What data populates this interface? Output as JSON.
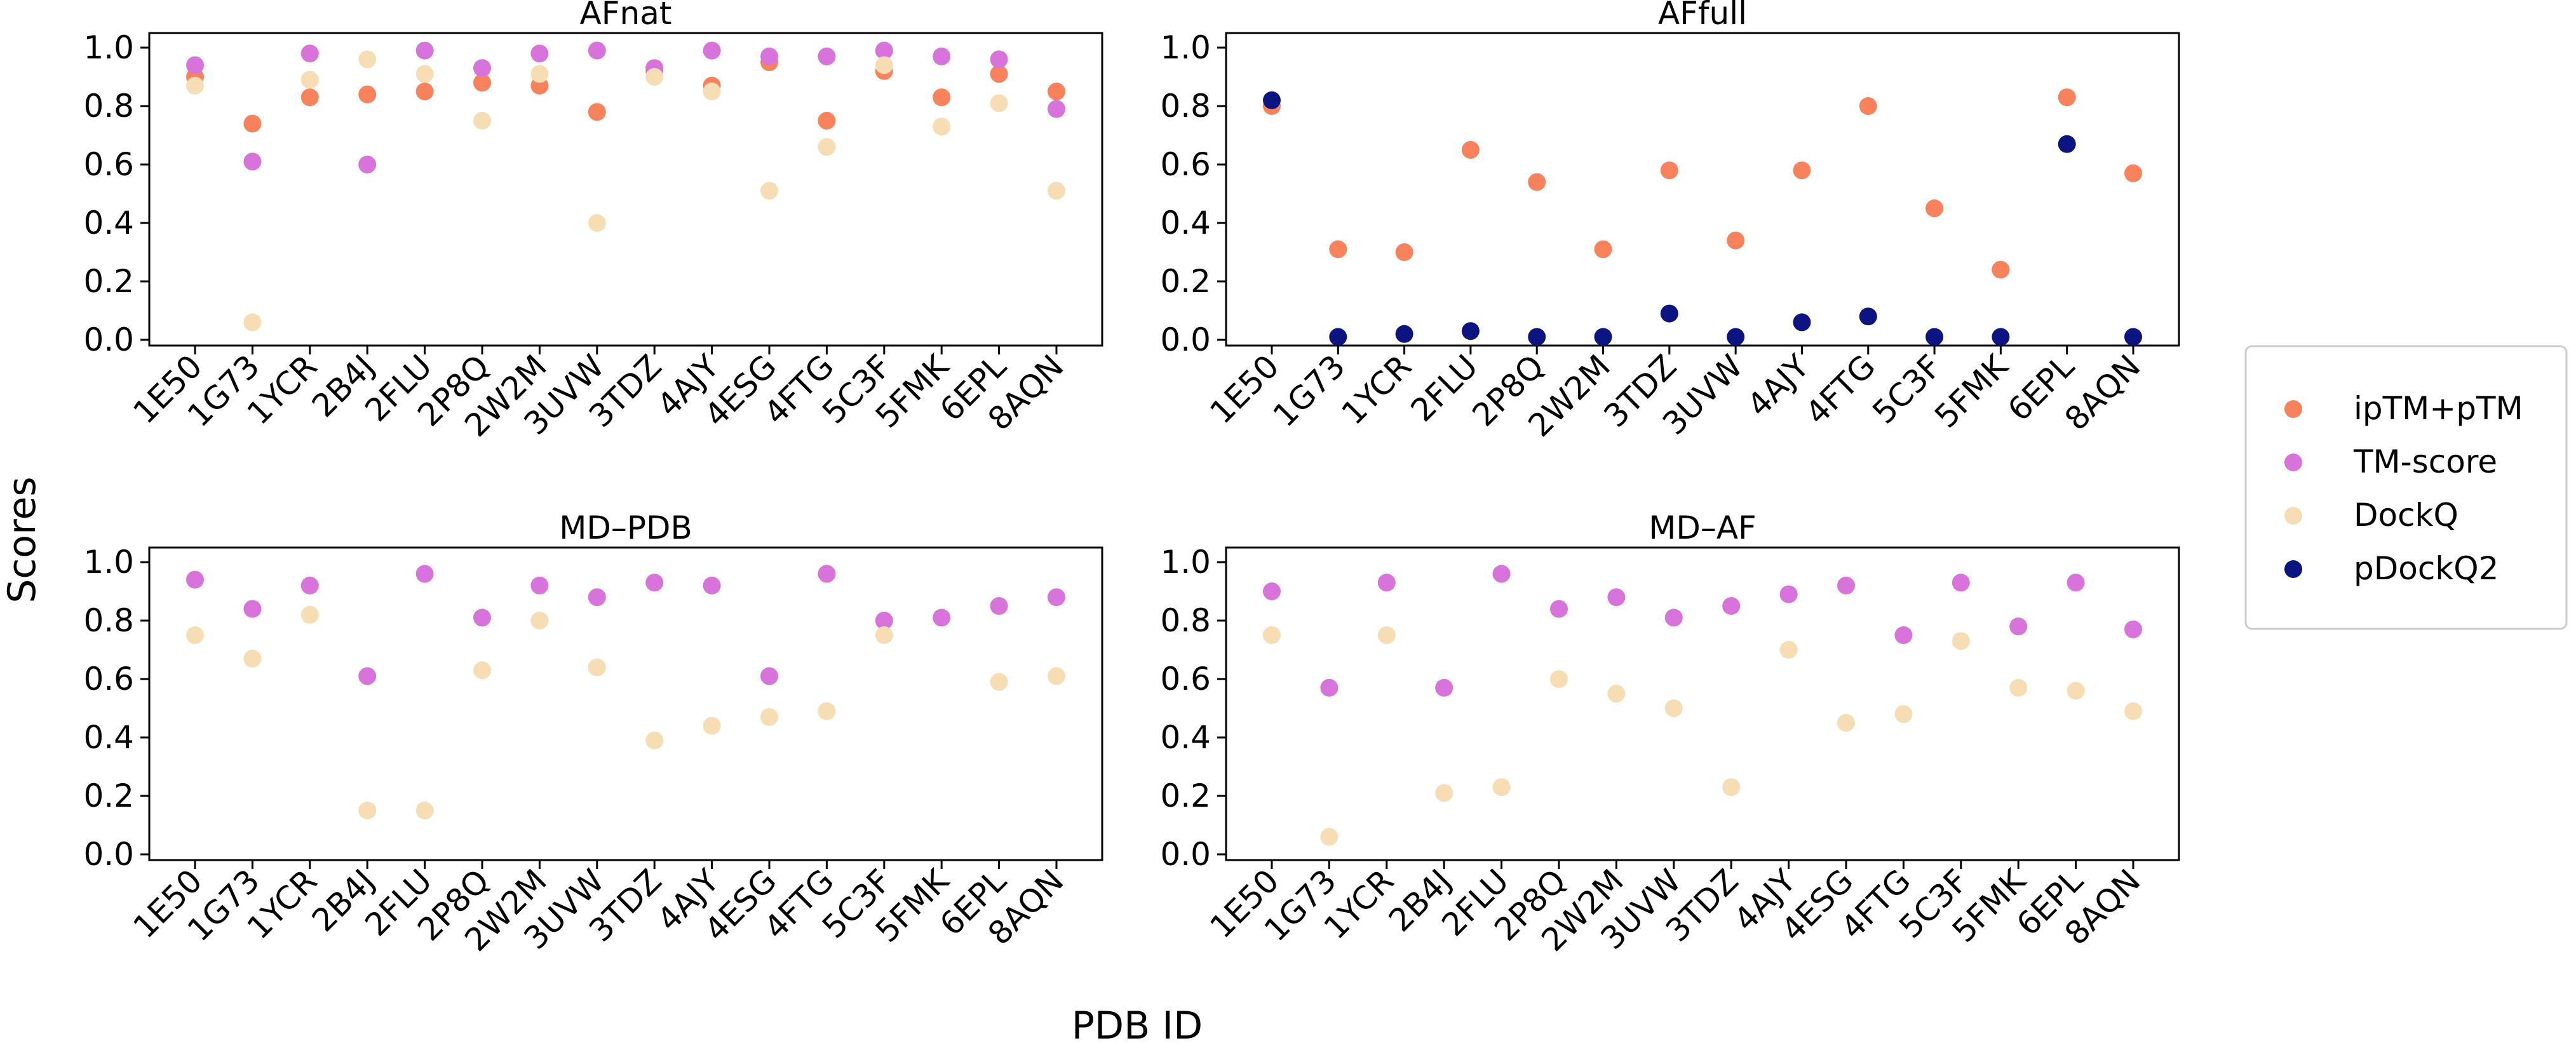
{
  "xlabel": "PDB ID",
  "ylabel": "Scores",
  "series_colors": {
    "ipTM+pTM": "#f8825c",
    "TM-score": "#d973dc",
    "DockQ": "#f6ddb4",
    "pDockQ2": "#0b1480"
  },
  "legend": {
    "position": "right",
    "entries": [
      "ipTM+pTM",
      "TM-score",
      "DockQ",
      "pDockQ2"
    ]
  },
  "chart_data": [
    {
      "type": "scatter",
      "title": "AFnat",
      "categories": [
        "1E50",
        "1G73",
        "1YCR",
        "2B4J",
        "2FLU",
        "2P8Q",
        "2W2M",
        "3UVW",
        "3TDZ",
        "4AJY",
        "4ESG",
        "4FTG",
        "5C3F",
        "5FMK",
        "6EPL",
        "8AQN"
      ],
      "ylim": [
        0,
        1.0
      ],
      "yticks": [
        "0.0",
        "0.2",
        "0.4",
        "0.6",
        "0.8",
        "1.0"
      ],
      "series": [
        {
          "name": "ipTM+pTM",
          "values": [
            0.9,
            0.74,
            0.83,
            0.84,
            0.85,
            0.88,
            0.87,
            0.78,
            0.92,
            0.87,
            0.95,
            0.75,
            0.92,
            0.83,
            0.91,
            0.85
          ]
        },
        {
          "name": "TM-score",
          "values": [
            0.94,
            0.61,
            0.98,
            0.6,
            0.99,
            0.93,
            0.98,
            0.99,
            0.93,
            0.99,
            0.97,
            0.97,
            0.99,
            0.97,
            0.96,
            0.79
          ]
        },
        {
          "name": "DockQ",
          "values": [
            0.87,
            0.06,
            0.89,
            0.96,
            0.91,
            0.75,
            0.91,
            0.4,
            0.9,
            0.85,
            0.51,
            0.66,
            0.94,
            0.73,
            0.81,
            0.51
          ]
        }
      ]
    },
    {
      "type": "scatter",
      "title": "AFfull",
      "categories": [
        "1E50",
        "1G73",
        "1YCR",
        "2FLU",
        "2P8Q",
        "2W2M",
        "3TDZ",
        "3UVW",
        "4AJY",
        "4FTG",
        "5C3F",
        "5FMK",
        "6EPL",
        "8AQN"
      ],
      "ylim": [
        0,
        1.0
      ],
      "yticks": [
        "0.0",
        "0.2",
        "0.4",
        "0.6",
        "0.8",
        "1.0"
      ],
      "series": [
        {
          "name": "ipTM+pTM",
          "values": [
            0.8,
            0.31,
            0.3,
            0.65,
            0.54,
            0.31,
            0.58,
            0.34,
            0.58,
            0.8,
            0.45,
            0.24,
            0.83,
            0.57
          ]
        },
        {
          "name": "pDockQ2",
          "values": [
            0.82,
            0.01,
            0.02,
            0.03,
            0.01,
            0.01,
            0.09,
            0.01,
            0.06,
            0.08,
            0.01,
            0.01,
            0.67,
            0.01
          ]
        }
      ]
    },
    {
      "type": "scatter",
      "title": "MD–PDB",
      "categories": [
        "1E50",
        "1G73",
        "1YCR",
        "2B4J",
        "2FLU",
        "2P8Q",
        "2W2M",
        "3UVW",
        "3TDZ",
        "4AJY",
        "4ESG",
        "4FTG",
        "5C3F",
        "5FMK",
        "6EPL",
        "8AQN"
      ],
      "ylim": [
        0,
        1.0
      ],
      "yticks": [
        "0.0",
        "0.2",
        "0.4",
        "0.6",
        "0.8",
        "1.0"
      ],
      "series": [
        {
          "name": "TM-score",
          "values": [
            0.94,
            0.84,
            0.92,
            0.61,
            0.96,
            0.81,
            0.92,
            0.88,
            0.93,
            0.92,
            0.61,
            0.96,
            0.8,
            0.81,
            0.85,
            0.88
          ]
        },
        {
          "name": "DockQ",
          "values": [
            0.75,
            0.67,
            0.82,
            0.15,
            0.15,
            0.63,
            0.8,
            0.64,
            0.39,
            0.44,
            0.47,
            0.49,
            0.75,
            null,
            0.59,
            0.61
          ]
        }
      ]
    },
    {
      "type": "scatter",
      "title": "MD–AF",
      "categories": [
        "1E50",
        "1G73",
        "1YCR",
        "2B4J",
        "2FLU",
        "2P8Q",
        "2W2M",
        "3UVW",
        "3TDZ",
        "4AJY",
        "4ESG",
        "4FTG",
        "5C3F",
        "5FMK",
        "6EPL",
        "8AQN"
      ],
      "ylim": [
        0,
        1.0
      ],
      "yticks": [
        "0.0",
        "0.2",
        "0.4",
        "0.6",
        "0.8",
        "1.0"
      ],
      "series": [
        {
          "name": "TM-score",
          "values": [
            0.9,
            0.57,
            0.93,
            0.57,
            0.96,
            0.84,
            0.88,
            0.81,
            0.85,
            0.89,
            0.92,
            0.75,
            0.93,
            0.78,
            0.93,
            0.77
          ]
        },
        {
          "name": "DockQ",
          "values": [
            0.75,
            0.06,
            0.75,
            0.21,
            0.23,
            0.6,
            0.55,
            0.5,
            0.23,
            0.7,
            0.45,
            0.48,
            0.73,
            0.57,
            0.56,
            0.49
          ]
        }
      ]
    }
  ]
}
